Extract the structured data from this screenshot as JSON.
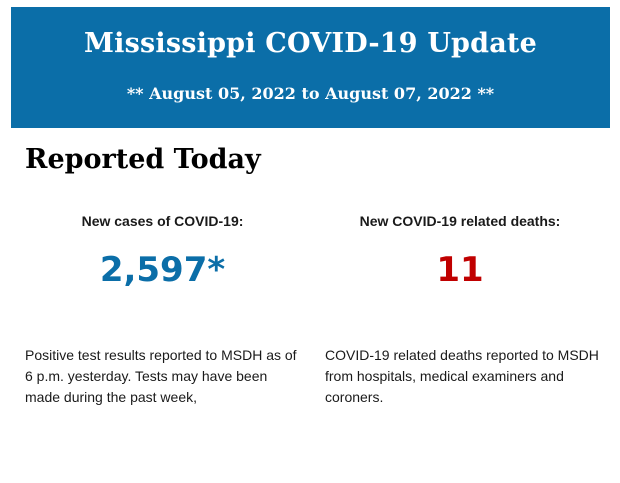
{
  "banner": {
    "title": "Mississippi COVID-19 Update",
    "subtitle": "** August 05, 2022 to August 07, 2022 **",
    "background_color": "#0b6ea8"
  },
  "section": {
    "heading": "Reported Today"
  },
  "cases": {
    "label": "New cases of COVID-19:",
    "value": "2,597*",
    "value_color": "#0b6ea8",
    "description": "Positive test results reported to MSDH as of 6 p.m. yesterday. Tests may have been made during the past week,"
  },
  "deaths": {
    "label": "New COVID-19 related deaths:",
    "value": "11",
    "value_color": "#c00000",
    "description": "COVID-19 related deaths reported to MSDH from hospitals, medical examiners and coroners."
  }
}
